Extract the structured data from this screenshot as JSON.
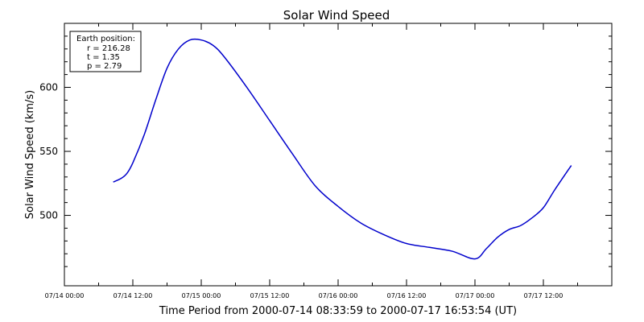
{
  "chart_data": {
    "type": "line",
    "title": "Solar Wind Speed",
    "xlabel": "Time Period from 2000-07-14 08:33:59 to 2000-07-17 16:53:54 (UT)",
    "ylabel": "Solar Wind Speed (km/s)",
    "xlim": [
      "2000-07-14T00:00:00",
      "2000-07-18T00:00:00"
    ],
    "ylim": [
      445,
      650
    ],
    "x_ticks": [
      {
        "value": "2000-07-14T00:00:00",
        "label": "07/14 00:00"
      },
      {
        "value": "2000-07-14T12:00:00",
        "label": "07/14 12:00"
      },
      {
        "value": "2000-07-15T00:00:00",
        "label": "07/15 00:00"
      },
      {
        "value": "2000-07-15T12:00:00",
        "label": "07/15 12:00"
      },
      {
        "value": "2000-07-16T00:00:00",
        "label": "07/16 00:00"
      },
      {
        "value": "2000-07-16T12:00:00",
        "label": "07/16 12:00"
      },
      {
        "value": "2000-07-17T00:00:00",
        "label": "07/17 00:00"
      },
      {
        "value": "2000-07-17T12:00:00",
        "label": "07/17 12:00"
      }
    ],
    "y_ticks": [
      {
        "value": 500,
        "label": "500"
      },
      {
        "value": 550,
        "label": "550"
      },
      {
        "value": 600,
        "label": "600"
      }
    ],
    "series": [
      {
        "color": "#0000cc",
        "x": [
          "2000-07-14T08:33:59",
          "2000-07-14T10:00:00",
          "2000-07-14T11:00:00",
          "2000-07-14T12:00:00",
          "2000-07-14T14:00:00",
          "2000-07-14T16:00:00",
          "2000-07-14T18:00:00",
          "2000-07-14T20:00:00",
          "2000-07-14T22:00:00",
          "2000-07-15T00:00:00",
          "2000-07-15T02:00:00",
          "2000-07-15T04:00:00",
          "2000-07-15T08:00:00",
          "2000-07-15T12:00:00",
          "2000-07-15T16:00:00",
          "2000-07-15T20:00:00",
          "2000-07-16T00:00:00",
          "2000-07-16T04:00:00",
          "2000-07-16T08:00:00",
          "2000-07-16T12:00:00",
          "2000-07-16T16:00:00",
          "2000-07-16T20:00:00",
          "2000-07-17T00:00:00",
          "2000-07-17T02:00:00",
          "2000-07-17T04:00:00",
          "2000-07-17T06:00:00",
          "2000-07-17T08:00:00",
          "2000-07-17T10:00:00",
          "2000-07-17T12:00:00",
          "2000-07-17T14:00:00",
          "2000-07-17T16:53:54"
        ],
        "y": [
          526,
          529,
          533,
          541,
          563,
          590,
          615,
          630,
          637,
          637,
          633,
          624,
          600,
          574,
          548,
          523,
          507,
          494,
          485,
          478,
          475,
          472,
          466,
          474,
          483,
          489,
          492,
          498,
          506,
          520,
          539
        ]
      }
    ]
  },
  "legend": {
    "heading": "Earth position:",
    "lines": [
      "r = 216.28",
      "t = 1.35",
      "p = 2.79"
    ]
  }
}
